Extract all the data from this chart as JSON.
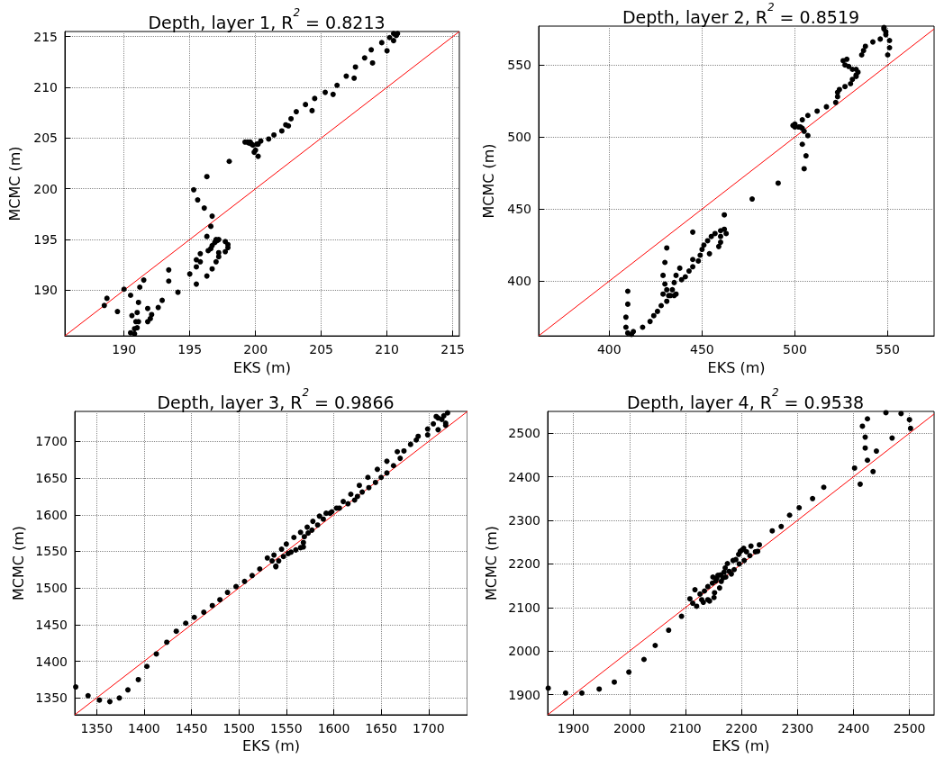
{
  "chart_data": [
    {
      "type": "scatter",
      "title": "Depth, layer 1, R$^{2}$ = 0.8213",
      "xlabel": "EKS (m)",
      "ylabel": "MCMC (m)",
      "xlim": [
        185.5,
        215.5
      ],
      "ylim": [
        185.5,
        215.5
      ],
      "xticks": [
        190,
        195,
        200,
        205,
        210,
        215
      ],
      "yticks": [
        190,
        195,
        200,
        205,
        210,
        215
      ],
      "grid": true,
      "series": [
        {
          "type": "scatter",
          "color": "#000000",
          "marker": "circle",
          "x": [
            210.8,
            210.5,
            210.2,
            210.7,
            210.5,
            210.0,
            209.6,
            208.8,
            208.9,
            208.3,
            207.6,
            207.5,
            206.9,
            206.2,
            205.9,
            205.3,
            204.5,
            204.3,
            203.8,
            203.1,
            202.7,
            202.5,
            202.3,
            202.0,
            201.4,
            201.0,
            200.4,
            200.2,
            200.1,
            200.0,
            199.9,
            200.2,
            199.8,
            199.5,
            199.4,
            199.2,
            199.6,
            199.7,
            198.0,
            196.3,
            195.3,
            195.6,
            196.1,
            196.7,
            196.6,
            196.3,
            197.0,
            197.1,
            197.2,
            196.9,
            196.7,
            196.6,
            196.4,
            197.2,
            197.2,
            197.7,
            197.9,
            197.9,
            197.7,
            197.0,
            196.7,
            196.3,
            195.8,
            195.8,
            195.5,
            195.5,
            195.5,
            195.0,
            193.4,
            193.4,
            194.1,
            192.9,
            192.6,
            192.1,
            192.0,
            191.8,
            191.8,
            191.1,
            191.2,
            191.5,
            190.5,
            190.6,
            191.0,
            190.9,
            191.1,
            190.8,
            191.0,
            190.8,
            190.5,
            190.0,
            189.5,
            188.7,
            188.5
          ],
          "values": [
            215.3,
            215.3,
            214.9,
            215.1,
            214.6,
            213.6,
            214.4,
            213.7,
            212.4,
            212.9,
            212.0,
            210.9,
            211.1,
            210.2,
            209.3,
            209.5,
            208.9,
            207.7,
            208.3,
            207.6,
            206.9,
            206.2,
            206.3,
            205.7,
            205.3,
            204.9,
            204.7,
            204.4,
            204.4,
            203.8,
            203.6,
            203.2,
            204.3,
            204.5,
            204.6,
            204.6,
            204.6,
            204.4,
            202.7,
            201.2,
            199.9,
            198.9,
            198.1,
            197.3,
            196.3,
            195.3,
            195.0,
            194.9,
            195.0,
            194.7,
            194.4,
            194.1,
            193.9,
            193.7,
            193.3,
            194.8,
            194.5,
            194.2,
            193.8,
            192.8,
            192.1,
            191.4,
            193.6,
            192.8,
            193.0,
            192.3,
            190.6,
            191.6,
            192.0,
            190.9,
            189.8,
            189.0,
            188.3,
            187.6,
            187.2,
            186.9,
            188.2,
            188.8,
            190.3,
            191.0,
            189.5,
            187.5,
            187.8,
            186.9,
            186.9,
            186.2,
            186.3,
            185.7,
            185.8,
            190.1,
            187.9,
            189.2,
            188.5
          ]
        },
        {
          "type": "line",
          "color": "#ff0000",
          "marker": "none",
          "x": [
            185.5,
            215.5
          ],
          "values": [
            185.5,
            215.5
          ]
        }
      ]
    },
    {
      "type": "scatter",
      "title": "Depth, layer 2, R$^{2}$ = 0.8519",
      "xlabel": "EKS (m)",
      "ylabel": "MCMC (m)",
      "xlim": [
        362,
        575
      ],
      "ylim": [
        362,
        577
      ],
      "xticks": [
        400,
        450,
        500,
        550
      ],
      "yticks": [
        400,
        450,
        500,
        550
      ],
      "grid": true,
      "series": [
        {
          "type": "scatter",
          "color": "#000000",
          "marker": "circle",
          "x": [
            548,
            548,
            549,
            549,
            551,
            551,
            550,
            546,
            542,
            538,
            537,
            536,
            528,
            526,
            527,
            529,
            531,
            533,
            534,
            533,
            533,
            531,
            530,
            527,
            524,
            523,
            523,
            522,
            517,
            512,
            507,
            504,
            499,
            500,
            502,
            503,
            504,
            500,
            505,
            507,
            504,
            506,
            505,
            491,
            477,
            462,
            462,
            463,
            460,
            460,
            460,
            459,
            457,
            455,
            453,
            451,
            450,
            449,
            448,
            445,
            445,
            454,
            445,
            443,
            441,
            439,
            438,
            436,
            436,
            435,
            434,
            435,
            433,
            432,
            431,
            430,
            429,
            430,
            431,
            429,
            431,
            428,
            426,
            424,
            422,
            418,
            413,
            412,
            410,
            410,
            409,
            409,
            410
          ],
          "values": [
            576,
            575,
            573,
            571,
            567,
            562,
            557,
            568,
            566,
            563,
            560,
            557,
            554,
            553,
            550,
            549,
            547,
            547,
            545,
            543,
            542,
            540,
            537,
            535,
            533,
            531,
            528,
            524,
            521,
            518,
            515,
            512,
            508,
            507,
            507,
            507,
            506,
            509,
            504,
            501,
            495,
            487,
            478,
            468,
            457,
            446,
            436,
            433,
            435,
            431,
            427,
            424,
            433,
            431,
            428,
            425,
            422,
            418,
            414,
            415,
            410,
            419,
            434,
            407,
            403,
            401,
            409,
            404,
            391,
            390,
            394,
            399,
            390,
            390,
            394,
            398,
            404,
            413,
            423,
            391,
            386,
            383,
            379,
            376,
            372,
            368,
            365,
            363,
            393,
            384,
            375,
            368,
            364
          ]
        },
        {
          "type": "line",
          "color": "#ff0000",
          "marker": "none",
          "x": [
            362,
            575
          ],
          "values": [
            362,
            575
          ]
        }
      ]
    },
    {
      "type": "scatter",
      "title": "Depth, layer 3, R$^{2}$ = 0.9866",
      "xlabel": "EKS (m)",
      "ylabel": "MCMC (m)",
      "xlim": [
        1327,
        1741
      ],
      "ylim": [
        1327,
        1741
      ],
      "xticks": [
        1350,
        1400,
        1450,
        1500,
        1550,
        1600,
        1650,
        1700
      ],
      "yticks": [
        1350,
        1400,
        1450,
        1500,
        1550,
        1600,
        1650,
        1700
      ],
      "grid": true,
      "series": [
        {
          "type": "scatter",
          "color": "#000000",
          "marker": "circle",
          "x": [
            1328,
            1341,
            1353,
            1364,
            1374,
            1383,
            1394,
            1403,
            1413,
            1424,
            1434,
            1444,
            1453,
            1463,
            1472,
            1480,
            1488,
            1497,
            1506,
            1514,
            1522,
            1530,
            1535,
            1537,
            1539,
            1545,
            1550,
            1558,
            1565,
            1572,
            1578,
            1585,
            1592,
            1598,
            1603,
            1610,
            1618,
            1625,
            1627,
            1636,
            1646,
            1656,
            1667,
            1674,
            1681,
            1689,
            1699,
            1708,
            1710,
            1714,
            1716,
            1720,
            1718,
            1710,
            1699,
            1687,
            1670,
            1663,
            1656,
            1650,
            1644,
            1637,
            1630,
            1622,
            1615,
            1606,
            1596,
            1589,
            1583,
            1577,
            1573,
            1569,
            1568,
            1568,
            1565,
            1560,
            1555,
            1552,
            1547,
            1542,
            1539,
            1705,
            1718
          ],
          "values": [
            1365,
            1353,
            1347,
            1345,
            1350,
            1361,
            1375,
            1393,
            1410,
            1426,
            1441,
            1452,
            1460,
            1467,
            1476,
            1484,
            1494,
            1502,
            1509,
            1517,
            1526,
            1541,
            1537,
            1545,
            1529,
            1553,
            1560,
            1569,
            1576,
            1583,
            1591,
            1598,
            1602,
            1604,
            1609,
            1618,
            1628,
            1625,
            1640,
            1651,
            1662,
            1673,
            1686,
            1687,
            1696,
            1707,
            1717,
            1734,
            1732,
            1730,
            1735,
            1739,
            1722,
            1716,
            1709,
            1702,
            1677,
            1667,
            1657,
            1651,
            1644,
            1637,
            1631,
            1620,
            1615,
            1609,
            1602,
            1594,
            1586,
            1579,
            1575,
            1570,
            1562,
            1556,
            1555,
            1552,
            1549,
            1547,
            1543,
            1537,
            1530,
            1724,
            1725
          ]
        },
        {
          "type": "line",
          "color": "#ff0000",
          "marker": "none",
          "x": [
            1327,
            1741
          ],
          "values": [
            1327,
            1741
          ]
        }
      ]
    },
    {
      "type": "scatter",
      "title": "Depth, layer 4, R$^{2}$ = 0.9538",
      "xlabel": "EKS (m)",
      "ylabel": "MCMC (m)",
      "xlim": [
        1854,
        2544
      ],
      "ylim": [
        1854,
        2550
      ],
      "xticks": [
        1900,
        2000,
        2100,
        2200,
        2300,
        2400,
        2500
      ],
      "yticks": [
        1900,
        2000,
        2100,
        2200,
        2300,
        2400,
        2500
      ],
      "grid": true,
      "series": [
        {
          "type": "scatter",
          "color": "#000000",
          "marker": "circle",
          "x": [
            1855,
            1886,
            1915,
            1946,
            1973,
            1999,
            2026,
            2046,
            2070,
            2093,
            2108,
            2113,
            2120,
            2117,
            2126,
            2129,
            2134,
            2140,
            2143,
            2148,
            2152,
            2151,
            2149,
            2156,
            2161,
            2163,
            2164,
            2169,
            2171,
            2172,
            2175,
            2178,
            2182,
            2185,
            2187,
            2190,
            2195,
            2196,
            2198,
            2201,
            2204,
            2205,
            2209,
            2217,
            2215,
            2225,
            2229,
            2232,
            2255,
            2271,
            2286,
            2303,
            2327,
            2347,
            2402,
            2412,
            2425,
            2435,
            2421,
            2421,
            2416,
            2425,
            2441,
            2458,
            2469,
            2485,
            2500,
            2502,
            2154,
            2158,
            2167,
            2140,
            2132
          ],
          "values": [
            1915,
            1904,
            1904,
            1913,
            1929,
            1952,
            1981,
            2013,
            2048,
            2080,
            2120,
            2110,
            2103,
            2141,
            2131,
            2118,
            2138,
            2148,
            2115,
            2156,
            2134,
            2123,
            2170,
            2167,
            2145,
            2175,
            2160,
            2181,
            2191,
            2170,
            2201,
            2183,
            2177,
            2208,
            2187,
            2210,
            2222,
            2200,
            2229,
            2232,
            2236,
            2208,
            2228,
            2241,
            2219,
            2228,
            2229,
            2244,
            2276,
            2286,
            2312,
            2329,
            2350,
            2376,
            2420,
            2383,
            2438,
            2412,
            2466,
            2491,
            2516,
            2533,
            2459,
            2547,
            2489,
            2545,
            2531,
            2511,
            2161,
            2174,
            2168,
            2118,
            2112
          ]
        },
        {
          "type": "line",
          "color": "#ff0000",
          "marker": "none",
          "x": [
            1854,
            2544
          ],
          "values": [
            1854,
            2544
          ]
        }
      ]
    }
  ]
}
